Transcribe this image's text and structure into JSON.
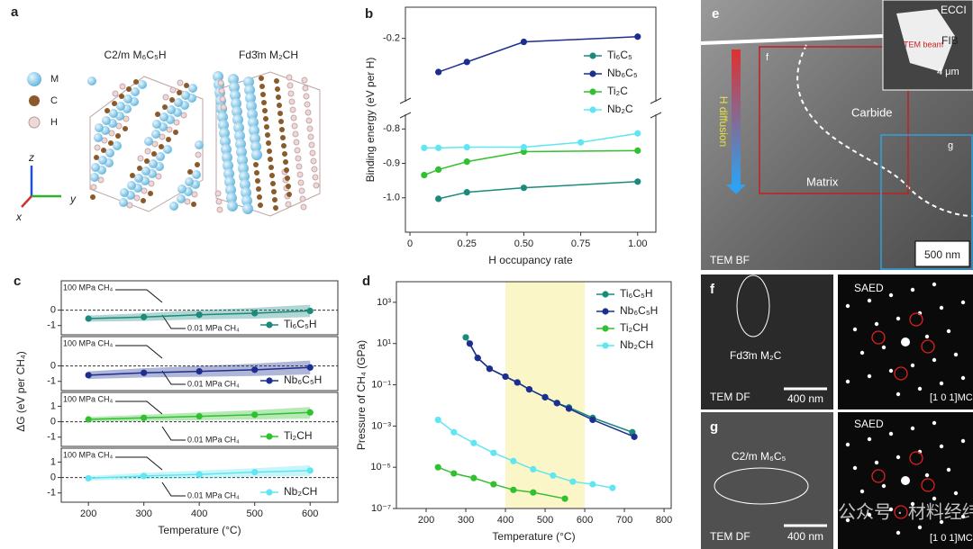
{
  "chart_data": [
    {
      "type": "line",
      "label": "b",
      "xlabel": "H occupancy rate",
      "ylabel": "Binding energy (eV per H)",
      "xlim": [
        -0.02,
        1.08
      ],
      "xticks": [
        0,
        0.25,
        {
          "value": 0.5,
          "label": "0.50"
        },
        0.75,
        {
          "value": 1,
          "label": "1.00"
        }
      ],
      "ylim": [
        -1.1,
        -0.76
      ],
      "yticks": [
        {
          "value": -1,
          "label": "-1.0"
        },
        -0.9,
        -0.8
      ],
      "ylim_top": [
        -0.38,
        -0.11
      ],
      "yticks_top": [
        -0.2
      ],
      "series": [
        {
          "name": "Ti₆C₅",
          "color": "#1b8a7d",
          "x": [
            0.125,
            0.25,
            0.5,
            1
          ],
          "values": [
            -1.003,
            -0.984,
            -0.971,
            -0.953
          ]
        },
        {
          "name": "Nb₆C₅",
          "color": "#1c2e8f",
          "x": [
            0.125,
            0.25,
            0.5,
            1
          ],
          "values": [
            -0.297,
            -0.268,
            -0.21,
            -0.195
          ]
        },
        {
          "name": "Ti₂C",
          "color": "#30c030",
          "x": [
            0.0625,
            0.125,
            0.25,
            0.5,
            1
          ],
          "values": [
            -0.934,
            -0.918,
            -0.895,
            -0.866,
            -0.863
          ]
        },
        {
          "name": "Nb₂C",
          "color": "#5fe6f2",
          "x": [
            0.0625,
            0.125,
            0.25,
            0.5,
            0.75,
            1
          ],
          "values": [
            -0.855,
            -0.855,
            -0.853,
            -0.853,
            -0.839,
            -0.813
          ]
        }
      ]
    },
    {
      "type": "line",
      "label": "c",
      "ylabel": "ΔG (eV per CH₄)",
      "xlim": [
        151,
        650
      ],
      "ylim": [
        -1.6,
        1.9
      ],
      "yticks": [
        -1,
        0
      ],
      "reference_line": 0,
      "annotations": [
        "100 MPa CH₄",
        "0.01 MPa CH₄"
      ],
      "series": [
        {
          "name": "Ti₆C₅H",
          "color": "#1b8a7d",
          "x": [
            200,
            300,
            400,
            500,
            600
          ],
          "values": [
            -0.55,
            -0.45,
            -0.3,
            -0.2,
            -0.05
          ],
          "lower": [
            -0.75,
            -0.7,
            -0.6,
            -0.55,
            -0.45
          ],
          "upper": [
            -0.35,
            -0.2,
            0,
            0.15,
            0.35
          ]
        }
      ]
    },
    {
      "type": "line",
      "xlim": [
        151,
        650
      ],
      "ylim": [
        -1.6,
        1.9
      ],
      "yticks": [
        -1,
        0
      ],
      "reference_line": 0,
      "annotations": [
        "100 MPa CH₄",
        "0.01 MPa CH₄"
      ],
      "series": [
        {
          "name": "Nb₆C₅H",
          "color": "#1c2e8f",
          "x": [
            200,
            300,
            400,
            500,
            600
          ],
          "values": [
            -0.6,
            -0.45,
            -0.35,
            -0.25,
            -0.1
          ],
          "lower": [
            -0.85,
            -0.75,
            -0.7,
            -0.65,
            -0.55
          ],
          "upper": [
            -0.35,
            -0.15,
            0,
            0.15,
            0.35
          ]
        }
      ]
    },
    {
      "type": "line",
      "xlim": [
        151,
        650
      ],
      "ylim": [
        -1.6,
        1.9
      ],
      "yticks": [
        -1,
        0,
        1
      ],
      "reference_line": 0,
      "annotations": [
        "100 MPa CH₄",
        "0.01 MPa CH₄"
      ],
      "series": [
        {
          "name": "Ti₂CH",
          "color": "#30c030",
          "x": [
            200,
            300,
            400,
            500,
            600
          ],
          "values": [
            0.15,
            0.25,
            0.35,
            0.45,
            0.6
          ],
          "lower": [
            0,
            0.05,
            0.1,
            0.15,
            0.2
          ],
          "upper": [
            0.3,
            0.45,
            0.6,
            0.75,
            0.95
          ]
        }
      ]
    },
    {
      "type": "line",
      "xlabel": "Temperature (°C)",
      "xlim": [
        151,
        650
      ],
      "xticks": [
        200,
        300,
        400,
        500,
        600
      ],
      "ylim": [
        -1.6,
        1.9
      ],
      "yticks": [
        -1,
        0,
        1
      ],
      "reference_line": 0,
      "annotations": [
        "100 MPa CH₄",
        "0.01 MPa CH₄"
      ],
      "series": [
        {
          "name": "Nb₂CH",
          "color": "#5fe6f2",
          "x": [
            200,
            300,
            400,
            500,
            600
          ],
          "values": [
            -0.05,
            0.1,
            0.2,
            0.35,
            0.45
          ],
          "lower": [
            -0.2,
            -0.1,
            -0.05,
            0.05,
            0.1
          ],
          "upper": [
            0.1,
            0.3,
            0.45,
            0.6,
            0.8
          ]
        }
      ]
    },
    {
      "type": "line",
      "label": "d",
      "xlabel": "Temperature (°C)",
      "ylabel": "Pressure of CH₄ (GPa)",
      "log_y": true,
      "highlight": [
        400,
        600
      ],
      "xlim": [
        125,
        818
      ],
      "xticks": [
        200,
        300,
        400,
        500,
        600,
        700,
        800
      ],
      "ylim": [
        1e-07,
        10000.0
      ],
      "yticks": [
        {
          "value": 1000,
          "label": "10³"
        },
        {
          "value": 10,
          "label": "10¹"
        },
        {
          "value": 0.1,
          "label": "10⁻¹"
        },
        {
          "value": 0.001,
          "label": "10⁻³"
        },
        {
          "value": 1e-05,
          "label": "10⁻⁵"
        },
        {
          "value": 1e-07,
          "label": "10⁻⁷"
        }
      ],
      "series": [
        {
          "name": "Ti₆C₅H",
          "color": "#1b8a7d",
          "x": [
            300,
            330,
            360,
            400,
            430,
            460,
            500,
            530,
            560,
            620,
            720
          ],
          "values": [
            20,
            2,
            0.6,
            0.25,
            0.13,
            0.06,
            0.025,
            0.013,
            0.008,
            0.0025,
            0.0005
          ]
        },
        {
          "name": "Nb₆C₅H",
          "color": "#1c2e8f",
          "x": [
            310,
            330,
            360,
            400,
            430,
            460,
            500,
            530,
            560,
            620,
            725
          ],
          "values": [
            10,
            2,
            0.6,
            0.25,
            0.13,
            0.06,
            0.025,
            0.013,
            0.007,
            0.002,
            0.0003
          ]
        },
        {
          "name": "Ti₂CH",
          "color": "#30c030",
          "x": [
            230,
            270,
            320,
            370,
            420,
            470,
            550
          ],
          "values": [
            1e-05,
            5e-06,
            3e-06,
            1.5e-06,
            8e-07,
            6e-07,
            3e-07
          ]
        },
        {
          "name": "Nb₂CH",
          "color": "#5fe6f2",
          "x": [
            230,
            270,
            320,
            370,
            420,
            470,
            520,
            570,
            620,
            670
          ],
          "values": [
            0.002,
            0.0005,
            0.00015,
            5e-05,
            2e-05,
            8e-06,
            4e-06,
            2e-06,
            1.5e-06,
            1e-06
          ]
        }
      ]
    }
  ],
  "panels": {
    "a": {
      "label": "a",
      "structures": [
        "C2/m M₆C₅H",
        "Fd3̄m M₂CH"
      ],
      "legend": [
        "M",
        "C",
        "H"
      ],
      "axes": [
        "z",
        "y",
        "x"
      ]
    },
    "e": {
      "label": "e",
      "inset": "ECCI",
      "beam": "TEM beam",
      "fib": "FIB",
      "inset_scale": "4 μm",
      "box_f": "f",
      "box_g": "g",
      "carbide": "Carbide",
      "matrix": "Matrix",
      "arrow": "H diffusion",
      "mode": "TEM BF",
      "scale": "500 nm"
    },
    "f": {
      "label": "f",
      "phase": "Fd3̄m M₂C",
      "mode": "TEM DF",
      "scale": "400 nm",
      "saed": "SAED",
      "zone": "[1 0 1]MC"
    },
    "g": {
      "label": "g",
      "phase": "C2/m M₆C₅",
      "mode": "TEM DF",
      "scale": "400 nm",
      "saed": "SAED",
      "zone": "[1 0 1]MC"
    },
    "watermark": "公众号 · 材料经纬"
  }
}
